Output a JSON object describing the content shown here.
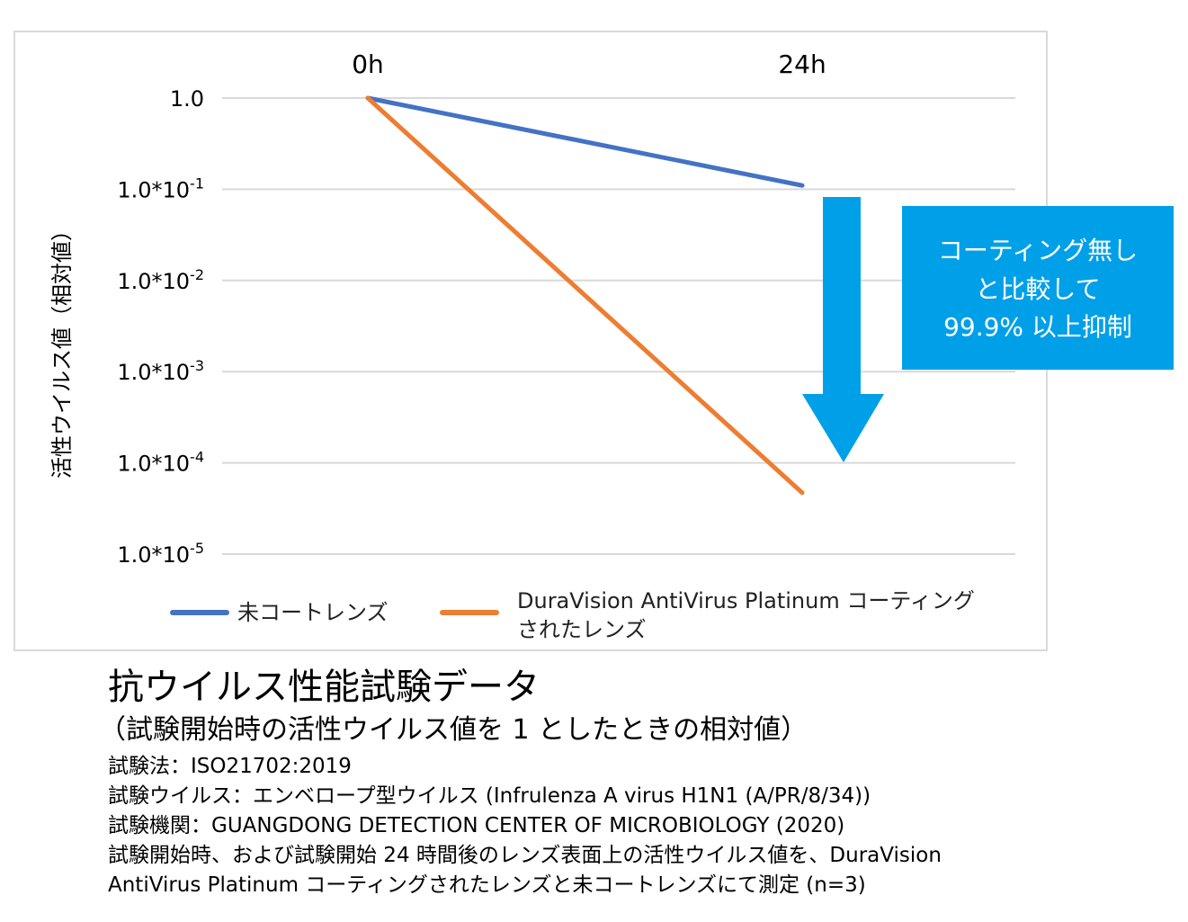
{
  "chart_data": {
    "type": "line",
    "categories": [
      "0h",
      "24h"
    ],
    "ylabel": "活性ウイルス値（相対値）",
    "y_scale": "log",
    "ylim": [
      1e-05,
      1
    ],
    "y_ticks": [
      {
        "value": 1,
        "base": "1.0",
        "exp": ""
      },
      {
        "value": 0.1,
        "base": "1.0*10",
        "exp": "-1"
      },
      {
        "value": 0.01,
        "base": "1.0*10",
        "exp": "-2"
      },
      {
        "value": 0.001,
        "base": "1.0*10",
        "exp": "-3"
      },
      {
        "value": 0.0001,
        "base": "1.0*10",
        "exp": "-4"
      },
      {
        "value": 1e-05,
        "base": "1.0*10",
        "exp": "-5"
      }
    ],
    "grid": true,
    "legend_position": "bottom",
    "series": [
      {
        "name": "未コートレンズ",
        "color": "#4472c4",
        "values": [
          1,
          0.11
        ]
      },
      {
        "name": "DuraVision AntiVirus Platinum コーティング されたレンズ",
        "legend_lines": [
          "DuraVision AntiVirus Platinum コーティング",
          "されたレンズ"
        ],
        "color": "#ed7d31",
        "values": [
          1,
          4.7e-05
        ]
      }
    ],
    "annotation": {
      "lines": [
        "コーティング無し",
        "と比較して",
        "99.9% 以上抑制"
      ],
      "box_color": "#00a0e9",
      "arrow_color": "#00a0e9"
    }
  },
  "caption": {
    "title": "抗ウイルス性能試験データ",
    "subtitle": "（試験開始時の活性ウイルス値を 1 としたときの相対値）",
    "notes": [
      "試験法：ISO21702:2019",
      "試験ウイルス：エンベロープ型ウイルス (Infrulenza A virus H1N1 (A/PR/8/34))",
      "試験機関：GUANGDONG DETECTION CENTER OF MICROBIOLOGY (2020)",
      "試験開始時、および試験開始 24 時間後のレンズ表面上の活性ウイルス値を、DuraVision",
      "AntiVirus Platinum コーティングされたレンズと未コートレンズにて測定 (n=3)"
    ]
  }
}
